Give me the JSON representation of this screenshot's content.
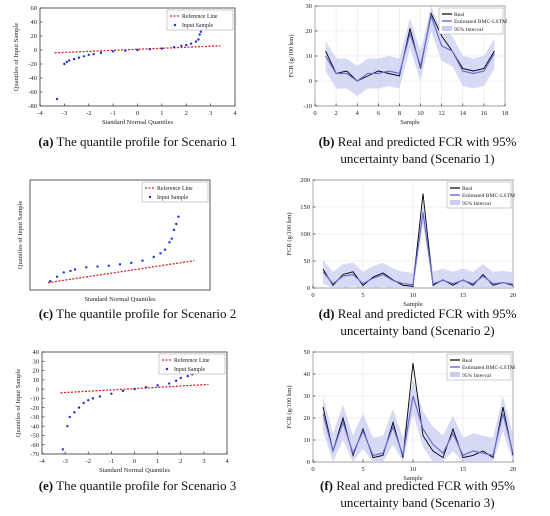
{
  "chart_data": [
    {
      "id": "a",
      "type": "scatter",
      "caption_letter": "(a)",
      "caption": "The quantile profile for Scenario 1",
      "xlabel": "Standard Normal Quantiles",
      "ylabel": "Quantiles of Input Sample",
      "xlim": [
        -4,
        4
      ],
      "ylim": [
        -80,
        60
      ],
      "xticks": [
        -4,
        -3,
        -2,
        -1,
        0,
        1,
        2,
        3,
        4
      ],
      "yticks": [
        -80,
        -60,
        -40,
        -20,
        0,
        20,
        40,
        60
      ],
      "legend": [
        "Reference Line",
        "Input Sample"
      ],
      "legend_position": "top-right",
      "reference_line": {
        "x": [
          -3.4,
          3.4
        ],
        "y": [
          -4.0,
          6.0
        ]
      },
      "sample": [
        [
          -3.3,
          -70
        ],
        [
          -3.0,
          -20
        ],
        [
          -2.9,
          -17
        ],
        [
          -2.8,
          -15
        ],
        [
          -2.6,
          -13
        ],
        [
          -2.4,
          -11
        ],
        [
          -2.2,
          -9
        ],
        [
          -2.0,
          -7
        ],
        [
          -1.8,
          -6
        ],
        [
          -1.5,
          -4
        ],
        [
          -1.0,
          -2
        ],
        [
          -0.5,
          -1
        ],
        [
          0,
          0
        ],
        [
          0.5,
          1
        ],
        [
          1.0,
          2
        ],
        [
          1.5,
          4
        ],
        [
          1.8,
          6
        ],
        [
          2.0,
          7
        ],
        [
          2.2,
          9
        ],
        [
          2.4,
          12
        ],
        [
          2.5,
          15
        ],
        [
          2.55,
          22
        ],
        [
          2.6,
          26
        ],
        [
          2.65,
          30
        ],
        [
          2.7,
          34
        ],
        [
          2.8,
          38
        ],
        [
          2.9,
          41
        ]
      ]
    },
    {
      "id": "b",
      "type": "line",
      "caption_letter": "(b)",
      "caption": "Real and predicted FCR with 95% uncertainty band (Scenario 1)",
      "xlabel": "Sample",
      "ylabel": "FCR (g/100 km)",
      "xlim": [
        0,
        18
      ],
      "ylim": [
        -10,
        30
      ],
      "xticks": [
        0,
        2,
        4,
        6,
        8,
        10,
        12,
        14,
        16,
        18
      ],
      "yticks": [
        -10,
        0,
        10,
        20,
        30
      ],
      "legend": [
        "Real",
        "Estimated BMC-LSTM",
        "95% Interval"
      ],
      "legend_position": "top-right",
      "x": [
        1,
        2,
        3,
        4,
        5,
        6,
        7,
        8,
        9,
        10,
        11,
        12,
        13,
        14,
        15,
        16,
        17
      ],
      "real": [
        12,
        3,
        4,
        0,
        2,
        4,
        3,
        2,
        21,
        5,
        27,
        18,
        12,
        5,
        4,
        5,
        12
      ],
      "estimated": [
        10,
        3,
        3,
        0,
        3,
        3,
        4,
        3,
        19,
        6,
        26,
        14,
        12,
        4,
        3,
        4,
        11
      ],
      "band_width": 6
    },
    {
      "id": "c",
      "type": "scatter",
      "caption_letter": "(c)",
      "caption": "The quantile profile for Scenario 2",
      "xlabel": "Standard Normal Quantiles",
      "ylabel": "Quantiles of Input Sample",
      "xlim": [
        -4,
        4
      ],
      "ylim": [
        -10,
        140
      ],
      "xticks": [],
      "yticks": [],
      "legend": [
        "Reference Line",
        "Input Sample"
      ],
      "legend_position": "top-right",
      "reference_line": {
        "x": [
          -3.2,
          3.3
        ],
        "y": [
          0,
          30
        ]
      },
      "sample": [
        [
          -3.1,
          2
        ],
        [
          -2.8,
          8
        ],
        [
          -2.5,
          14
        ],
        [
          -2.2,
          16
        ],
        [
          -2.0,
          18
        ],
        [
          -1.5,
          21
        ],
        [
          -1.0,
          22
        ],
        [
          -0.5,
          23
        ],
        [
          0,
          25
        ],
        [
          0.5,
          27
        ],
        [
          1.0,
          30
        ],
        [
          1.5,
          35
        ],
        [
          1.8,
          40
        ],
        [
          2.0,
          45
        ],
        [
          2.2,
          55
        ],
        [
          2.3,
          60
        ],
        [
          2.4,
          72
        ],
        [
          2.5,
          80
        ],
        [
          2.6,
          90
        ],
        [
          2.7,
          125
        ],
        [
          2.85,
          130
        ]
      ]
    },
    {
      "id": "d",
      "type": "line",
      "caption_letter": "(d)",
      "caption": "Real and predicted FCR with 95% uncertainty band (Scenario 2)",
      "xlabel": "Sample",
      "ylabel": "FCR (g/100 km)",
      "xlim": [
        0,
        20
      ],
      "ylim": [
        0,
        200
      ],
      "xticks": [
        0,
        5,
        10,
        15,
        20
      ],
      "yticks": [
        0,
        50,
        100,
        150,
        200
      ],
      "legend": [
        "Real",
        "Estimated BMC-LSTM",
        "95% Interval"
      ],
      "legend_position": "top-right",
      "x": [
        1,
        2,
        3,
        4,
        5,
        6,
        7,
        8,
        9,
        10,
        11,
        12,
        13,
        14,
        15,
        16,
        17,
        18,
        19,
        20
      ],
      "real": [
        35,
        5,
        25,
        30,
        5,
        20,
        28,
        15,
        5,
        3,
        175,
        5,
        15,
        5,
        15,
        5,
        25,
        5,
        10,
        5
      ],
      "estimated": [
        30,
        8,
        22,
        25,
        8,
        18,
        25,
        14,
        8,
        6,
        140,
        8,
        14,
        8,
        14,
        8,
        22,
        8,
        10,
        7
      ],
      "band_width": 22
    },
    {
      "id": "e",
      "type": "scatter",
      "caption_letter": "(e)",
      "caption": "The quantile profile for Scenario 3",
      "xlabel": "Standard Normal Quantiles",
      "ylabel": "Quantiles of Input Sample",
      "xlim": [
        -4,
        4
      ],
      "ylim": [
        -70,
        40
      ],
      "xticks": [
        -4,
        -3,
        -2,
        -1,
        0,
        1,
        2,
        3,
        4
      ],
      "yticks": [
        -70,
        -60,
        -50,
        -40,
        -30,
        -20,
        -10,
        0,
        10,
        20,
        30,
        40
      ],
      "legend": [
        "Reference Line",
        "Input Sample"
      ],
      "legend_position": "top-right",
      "reference_line": {
        "x": [
          -3.2,
          3.2
        ],
        "y": [
          -4,
          5
        ]
      },
      "sample": [
        [
          -3.1,
          -65
        ],
        [
          -2.9,
          -40
        ],
        [
          -2.8,
          -30
        ],
        [
          -2.6,
          -25
        ],
        [
          -2.4,
          -20
        ],
        [
          -2.2,
          -15
        ],
        [
          -2.0,
          -12
        ],
        [
          -1.8,
          -10
        ],
        [
          -1.5,
          -8
        ],
        [
          -1.0,
          -5
        ],
        [
          -0.5,
          -2
        ],
        [
          0,
          0
        ],
        [
          0.5,
          2
        ],
        [
          1.0,
          4
        ],
        [
          1.5,
          6
        ],
        [
          1.8,
          9
        ],
        [
          2.0,
          12
        ],
        [
          2.3,
          14
        ],
        [
          2.5,
          16
        ],
        [
          2.7,
          18
        ],
        [
          2.9,
          20
        ],
        [
          3.0,
          22
        ],
        [
          3.1,
          24
        ]
      ]
    },
    {
      "id": "f",
      "type": "line",
      "caption_letter": "(f)",
      "caption": "Real and predicted FCR with 95% uncertainty band (Scenario 3)",
      "xlabel": "Sample",
      "ylabel": "FCR (g/100 km)",
      "xlim": [
        0,
        20
      ],
      "ylim": [
        0,
        50
      ],
      "xticks": [
        0,
        5,
        10,
        15,
        20
      ],
      "yticks": [
        0,
        10,
        20,
        30,
        40,
        50
      ],
      "legend": [
        "Real",
        "Estimated BMC-LSTM",
        "95% Interval"
      ],
      "legend_position": "top-right",
      "x": [
        1,
        2,
        3,
        4,
        5,
        6,
        7,
        8,
        9,
        10,
        11,
        12,
        13,
        14,
        15,
        16,
        17,
        18,
        19,
        20
      ],
      "real": [
        25,
        5,
        20,
        3,
        15,
        2,
        3,
        18,
        2,
        45,
        12,
        5,
        2,
        15,
        2,
        3,
        5,
        2,
        25,
        3
      ],
      "estimated": [
        22,
        5,
        18,
        4,
        14,
        3,
        4,
        16,
        3,
        30,
        15,
        8,
        4,
        13,
        3,
        5,
        4,
        3,
        22,
        4
      ],
      "band_width": 8
    }
  ],
  "colors": {
    "real": "#000000",
    "estimated": "#6a6ad8",
    "band": "#c9cdf0",
    "reference": "#e02020",
    "sample": "#2030d8"
  }
}
